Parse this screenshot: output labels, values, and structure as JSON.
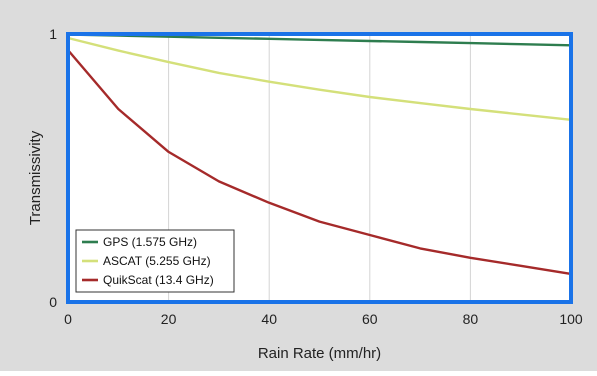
{
  "chart_data": {
    "type": "line",
    "title": "",
    "xlabel": "Rain Rate  (mm/hr)",
    "ylabel": "Transmissivity",
    "xlim": [
      0,
      100
    ],
    "ylim": [
      0,
      1
    ],
    "x_ticks": [
      0,
      20,
      40,
      60,
      80,
      100
    ],
    "y_ticks": [
      0,
      1
    ],
    "grid": "vertical",
    "legend_position": "bottom-left",
    "colors": {
      "panel_background": "#dcdcdc",
      "plot_background": "#ffffff",
      "plot_border": "#1a73e8",
      "grid": "#d4d4d4"
    },
    "x": [
      0,
      10,
      20,
      30,
      40,
      50,
      60,
      70,
      80,
      90,
      100
    ],
    "series": [
      {
        "name": "GPS (1.575 GHz)",
        "color": "#2e7d4f",
        "values": [
          0.998,
          0.994,
          0.99,
          0.986,
          0.982,
          0.978,
          0.974,
          0.97,
          0.966,
          0.962,
          0.958
        ]
      },
      {
        "name": "ASCAT (5.255 GHz)",
        "color": "#d4e07a",
        "values": [
          0.985,
          0.938,
          0.895,
          0.855,
          0.822,
          0.792,
          0.765,
          0.742,
          0.72,
          0.7,
          0.68
        ]
      },
      {
        "name": "QuikScat (13.4 GHz)",
        "color": "#a52a2a",
        "values": [
          0.94,
          0.72,
          0.56,
          0.45,
          0.37,
          0.3,
          0.25,
          0.2,
          0.165,
          0.135,
          0.105
        ]
      }
    ]
  }
}
